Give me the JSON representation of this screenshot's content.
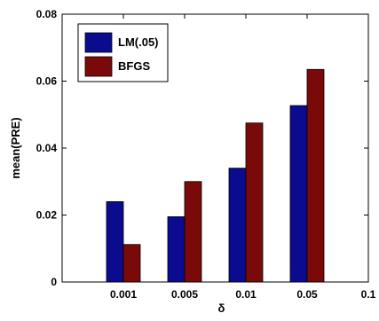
{
  "chart_data": {
    "type": "bar",
    "title": "",
    "xlabel": "δ",
    "ylabel": "mean(PRE)",
    "categories": [
      "0.001",
      "0.005",
      "0.01",
      "0.05",
      "0.1"
    ],
    "series": [
      {
        "name": "LM(.05)",
        "color": "#0b0b8f",
        "values": [
          0.024,
          0.0195,
          0.034,
          0.0527,
          null
        ]
      },
      {
        "name": "BFGS",
        "color": "#7a0a0a",
        "values": [
          0.0112,
          0.03,
          0.0475,
          0.0635,
          null
        ]
      }
    ],
    "ylim": [
      0,
      0.08
    ],
    "yticks": [
      "0",
      "0.02",
      "0.04",
      "0.06",
      "0.08"
    ],
    "grid": false,
    "legend_position": "top-left"
  }
}
